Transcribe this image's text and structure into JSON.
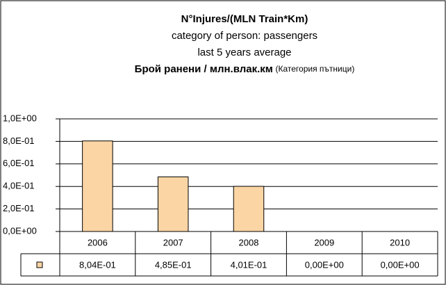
{
  "chart_data": {
    "type": "bar",
    "title": "N°Injures/(MLN Train*Km)",
    "subtitle": [
      "category of person: passengers",
      "last 5 years average"
    ],
    "title_bg": "Брой ранени / млн.влак.км",
    "title_bg_note": "(Категория пътници)",
    "categories": [
      "2006",
      "2007",
      "2008",
      "2009",
      "2010"
    ],
    "values": [
      0.804,
      0.485,
      0.401,
      0,
      0
    ],
    "value_labels": [
      "8,04E-01",
      "4,85E-01",
      "4,01E-01",
      "0,00E+00",
      "0,00E+00"
    ],
    "color": "#fcd5a5",
    "ylim": [
      0,
      1
    ],
    "yticks": [
      {
        "value": 0,
        "label": "0,0E+00"
      },
      {
        "value": 0.2,
        "label": "2,0E-01"
      },
      {
        "value": 0.4,
        "label": "4,0E-01"
      },
      {
        "value": 0.6,
        "label": "6,0E-01"
      },
      {
        "value": 0.8,
        "label": "8,0E-01"
      },
      {
        "value": 1,
        "label": "1,0E+00"
      }
    ],
    "grid": true
  }
}
